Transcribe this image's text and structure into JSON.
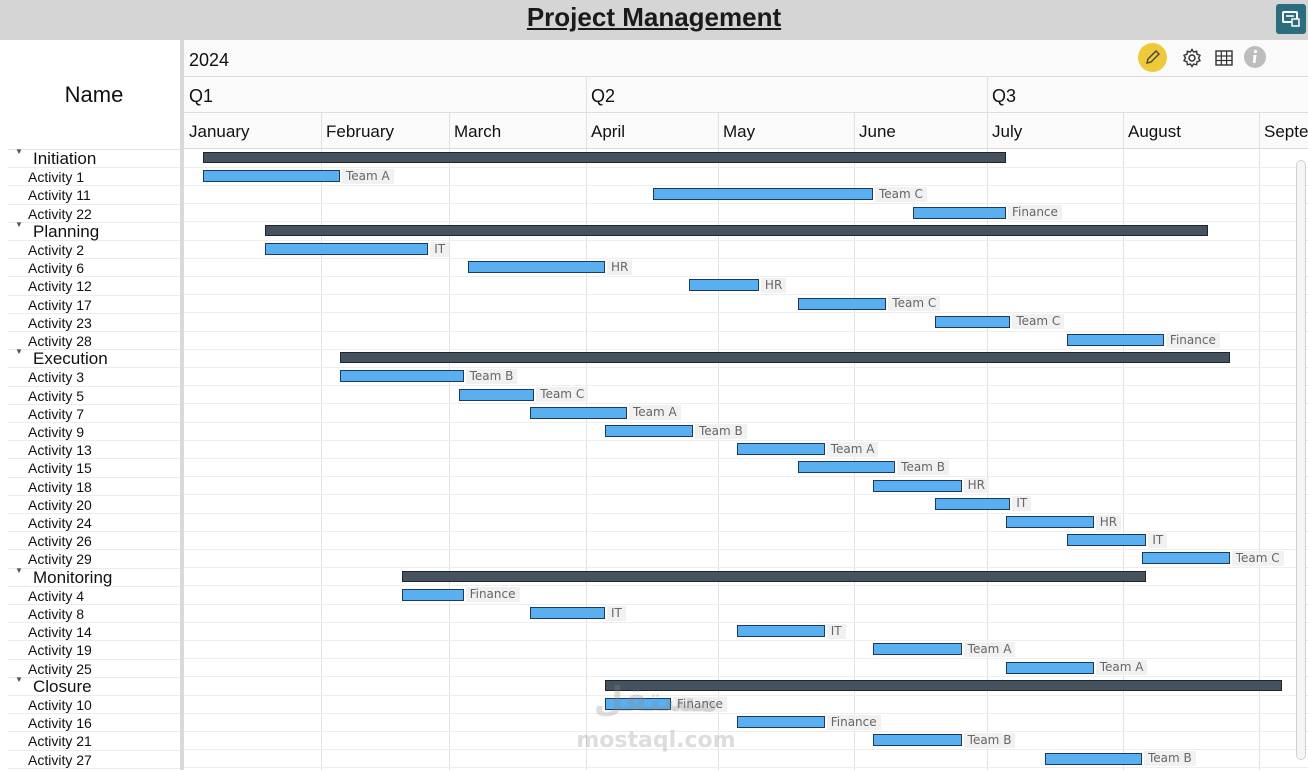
{
  "title": "Project Management",
  "name_header": "Name",
  "year": "2024",
  "quarters": [
    "Q1",
    "Q2",
    "Q3"
  ],
  "months": [
    "January",
    "February",
    "March",
    "April",
    "May",
    "June",
    "July",
    "August",
    "Septe"
  ],
  "toolbar": {
    "icons": [
      "pencil-icon",
      "gear-icon",
      "grid-icon",
      "info-icon"
    ],
    "accent": "#f0c93a",
    "corner_button_color": "#2b6c7f"
  },
  "colors": {
    "summary_bar": "#46535f",
    "task_bar": "#5aaff0"
  },
  "watermark": {
    "arabic": "مستقل",
    "latin": "mostaql.com"
  },
  "rows": [
    {
      "name": "Initiation",
      "group": true,
      "start": "01-01",
      "end": "06-30"
    },
    {
      "name": "Activity 1",
      "start": "01-01",
      "end": "01-31",
      "resource": "Team A"
    },
    {
      "name": "Activity 11",
      "start": "04-12",
      "end": "05-31",
      "resource": "Team C"
    },
    {
      "name": "Activity 22",
      "start": "06-10",
      "end": "06-30",
      "resource": "Finance"
    },
    {
      "name": "Planning",
      "group": true,
      "start": "01-15",
      "end": "08-15"
    },
    {
      "name": "Activity 2",
      "start": "01-15",
      "end": "02-20",
      "resource": "IT"
    },
    {
      "name": "Activity 6",
      "start": "03-01",
      "end": "03-31",
      "resource": "HR"
    },
    {
      "name": "Activity 12",
      "start": "04-20",
      "end": "05-05",
      "resource": "HR"
    },
    {
      "name": "Activity 17",
      "start": "05-15",
      "end": "06-03",
      "resource": "Team C"
    },
    {
      "name": "Activity 23",
      "start": "06-15",
      "end": "07-01",
      "resource": "Team C"
    },
    {
      "name": "Activity 28",
      "start": "07-15",
      "end": "08-05",
      "resource": "Finance"
    },
    {
      "name": "Execution",
      "group": true,
      "start": "02-01",
      "end": "08-20"
    },
    {
      "name": "Activity 3",
      "start": "02-01",
      "end": "02-28",
      "resource": "Team B"
    },
    {
      "name": "Activity 5",
      "start": "02-28",
      "end": "03-15",
      "resource": "Team C"
    },
    {
      "name": "Activity 7",
      "start": "03-15",
      "end": "04-05",
      "resource": "Team A"
    },
    {
      "name": "Activity 9",
      "start": "04-01",
      "end": "04-20",
      "resource": "Team B"
    },
    {
      "name": "Activity 13",
      "start": "05-01",
      "end": "05-20",
      "resource": "Team A"
    },
    {
      "name": "Activity 15",
      "start": "05-15",
      "end": "06-05",
      "resource": "Team B"
    },
    {
      "name": "Activity 18",
      "start": "06-01",
      "end": "06-20",
      "resource": "HR"
    },
    {
      "name": "Activity 20",
      "start": "06-15",
      "end": "07-01",
      "resource": "IT"
    },
    {
      "name": "Activity 24",
      "start": "07-01",
      "end": "07-20",
      "resource": "HR"
    },
    {
      "name": "Activity 26",
      "start": "07-15",
      "end": "08-01",
      "resource": "IT"
    },
    {
      "name": "Activity 29",
      "start": "08-01",
      "end": "08-20",
      "resource": "Team C"
    },
    {
      "name": "Monitoring",
      "group": true,
      "start": "02-15",
      "end": "08-01"
    },
    {
      "name": "Activity 4",
      "start": "02-15",
      "end": "02-28",
      "resource": "Finance"
    },
    {
      "name": "Activity 8",
      "start": "03-15",
      "end": "03-31",
      "resource": "IT"
    },
    {
      "name": "Activity 14",
      "start": "05-01",
      "end": "05-20",
      "resource": "IT"
    },
    {
      "name": "Activity 19",
      "start": "06-01",
      "end": "06-20",
      "resource": "Team A"
    },
    {
      "name": "Activity 25",
      "start": "07-01",
      "end": "07-20",
      "resource": "Team A"
    },
    {
      "name": "Closure",
      "group": true,
      "start": "04-01",
      "end": "09-01"
    },
    {
      "name": "Activity 10",
      "start": "04-01",
      "end": "04-15",
      "resource": "Finance"
    },
    {
      "name": "Activity 16",
      "start": "05-01",
      "end": "05-20",
      "resource": "Finance"
    },
    {
      "name": "Activity 21",
      "start": "06-01",
      "end": "06-20",
      "resource": "Team B"
    },
    {
      "name": "Activity 27",
      "start": "07-10",
      "end": "07-31",
      "resource": "Team B"
    }
  ]
}
